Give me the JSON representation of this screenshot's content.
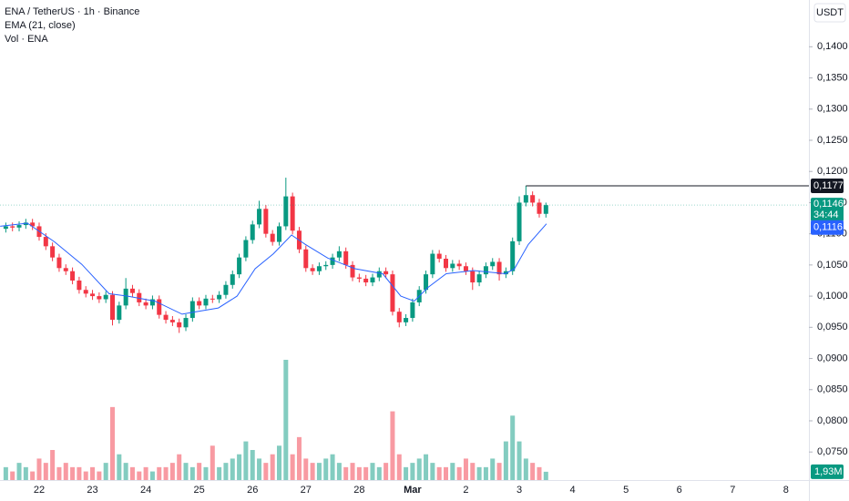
{
  "chart_data": {
    "type": "candlestick",
    "title": "ENA / TetherUS · 1h · Binance",
    "currency": "USDT",
    "up_color": "#089981",
    "down_color": "#f23645",
    "grid": false,
    "xlim": [
      21.266,
      36.43
    ],
    "ylim": [
      0.0705,
      0.1475
    ],
    "xticks": [
      22,
      23,
      24,
      25,
      26,
      27,
      28,
      {
        "value": 29,
        "label": "Mar"
      },
      {
        "value": 30,
        "label": "2"
      },
      {
        "value": 31,
        "label": "3"
      },
      {
        "value": 32,
        "label": "4"
      },
      {
        "value": 33,
        "label": "5"
      },
      {
        "value": 34,
        "label": "6"
      },
      {
        "value": 35,
        "label": "7"
      },
      {
        "value": 36,
        "label": "8"
      }
    ],
    "yticks": [
      {
        "value": 0.075,
        "label": "0,0750"
      },
      {
        "value": 0.08,
        "label": "0,0800"
      },
      {
        "value": 0.085,
        "label": "0,0850"
      },
      {
        "value": 0.09,
        "label": "0,0900"
      },
      {
        "value": 0.095,
        "label": "0,0950"
      },
      {
        "value": 0.1,
        "label": "0,1000"
      },
      {
        "value": 0.105,
        "label": "0,1050"
      },
      {
        "value": 0.11,
        "label": "0,1100"
      },
      {
        "value": 0.115,
        "label": "0,1150"
      },
      {
        "value": 0.12,
        "label": "0,1200"
      },
      {
        "value": 0.125,
        "label": "0,1250"
      },
      {
        "value": 0.13,
        "label": "0,1300"
      },
      {
        "value": 0.135,
        "label": "0,1350"
      },
      {
        "value": 0.14,
        "label": "0,1400"
      }
    ],
    "x": [
      21.375,
      21.5,
      21.625,
      21.75,
      21.875,
      22,
      22.125,
      22.25,
      22.375,
      22.5,
      22.625,
      22.75,
      22.875,
      23,
      23.125,
      23.25,
      23.375,
      23.5,
      23.625,
      23.75,
      23.875,
      24,
      24.125,
      24.25,
      24.375,
      24.5,
      24.625,
      24.75,
      24.875,
      25,
      25.125,
      25.25,
      25.375,
      25.5,
      25.625,
      25.75,
      25.875,
      26,
      26.125,
      26.25,
      26.375,
      26.5,
      26.625,
      26.75,
      26.875,
      27,
      27.125,
      27.25,
      27.375,
      27.5,
      27.625,
      27.75,
      27.875,
      28,
      28.125,
      28.25,
      28.375,
      28.5,
      28.625,
      28.75,
      28.875,
      29,
      29.125,
      29.25,
      29.375,
      29.5,
      29.625,
      29.75,
      29.875,
      30,
      30.125,
      30.25,
      30.375,
      30.5,
      30.625,
      30.75,
      30.875,
      31,
      31.125,
      31.25,
      31.375,
      31.5
    ],
    "open": [
      0.1108,
      0.1112,
      0.111,
      0.1114,
      0.1118,
      0.1112,
      0.1095,
      0.108,
      0.1062,
      0.1045,
      0.104,
      0.1025,
      0.101,
      0.1004,
      0.1,
      0.0995,
      0.1002,
      0.0962,
      0.0985,
      0.1012,
      0.1005,
      0.099,
      0.0985,
      0.0995,
      0.097,
      0.0962,
      0.0958,
      0.095,
      0.0965,
      0.0992,
      0.0985,
      0.0996,
      0.0995,
      0.1002,
      0.1018,
      0.1035,
      0.1062,
      0.109,
      0.1115,
      0.114,
      0.11,
      0.1087,
      0.1112,
      0.116,
      0.1105,
      0.1075,
      0.1045,
      0.104,
      0.1048,
      0.105,
      0.1062,
      0.1072,
      0.105,
      0.103,
      0.1028,
      0.1022,
      0.103,
      0.104,
      0.1035,
      0.0975,
      0.0958,
      0.0965,
      0.099,
      0.101,
      0.1035,
      0.1068,
      0.106,
      0.1045,
      0.1052,
      0.1048,
      0.104,
      0.1022,
      0.1035,
      0.1048,
      0.1055,
      0.1035,
      0.104,
      0.1088,
      0.115,
      0.1162,
      0.115,
      0.1132
    ],
    "high": [
      0.1118,
      0.1118,
      0.112,
      0.1124,
      0.1124,
      0.1118,
      0.1101,
      0.1086,
      0.1068,
      0.1051,
      0.1046,
      0.1031,
      0.1016,
      0.101,
      0.1006,
      0.1008,
      0.1008,
      0.0991,
      0.1029,
      0.1018,
      0.1011,
      0.0996,
      0.1001,
      0.1001,
      0.0976,
      0.0968,
      0.0964,
      0.0971,
      0.0998,
      0.0998,
      0.1002,
      0.1002,
      0.1008,
      0.1024,
      0.1041,
      0.1068,
      0.1096,
      0.1121,
      0.1153,
      0.1146,
      0.1106,
      0.1118,
      0.119,
      0.1166,
      0.1111,
      0.1081,
      0.1051,
      0.1054,
      0.1056,
      0.1068,
      0.108,
      0.1078,
      0.1056,
      0.1036,
      0.1034,
      0.1036,
      0.1046,
      0.1046,
      0.1041,
      0.0981,
      0.0971,
      0.0996,
      0.1016,
      0.1041,
      0.1074,
      0.1074,
      0.1066,
      0.1058,
      0.1058,
      0.1054,
      0.1046,
      0.1041,
      0.1054,
      0.1061,
      0.1061,
      0.1046,
      0.1094,
      0.116,
      0.1177,
      0.1168,
      0.1156,
      0.115
    ],
    "low": [
      0.1102,
      0.1104,
      0.1104,
      0.1108,
      0.1106,
      0.1089,
      0.1074,
      0.1056,
      0.1039,
      0.1034,
      0.1019,
      0.1004,
      0.0998,
      0.0994,
      0.0989,
      0.0989,
      0.0953,
      0.0956,
      0.0979,
      0.0999,
      0.0984,
      0.0979,
      0.0979,
      0.0964,
      0.0956,
      0.0952,
      0.0941,
      0.0944,
      0.0959,
      0.0979,
      0.0979,
      0.0989,
      0.0989,
      0.0996,
      0.1012,
      0.1029,
      0.1056,
      0.1084,
      0.1109,
      0.1094,
      0.1081,
      0.1081,
      0.1106,
      0.1099,
      0.1069,
      0.1039,
      0.1034,
      0.1034,
      0.1042,
      0.1044,
      0.1056,
      0.1044,
      0.1024,
      0.1022,
      0.1016,
      0.1016,
      0.1024,
      0.1029,
      0.0969,
      0.095,
      0.0952,
      0.0959,
      0.0984,
      0.1004,
      0.1029,
      0.1054,
      0.1039,
      0.1039,
      0.1042,
      0.1034,
      0.101,
      0.1016,
      0.1029,
      0.1042,
      0.1025,
      0.1029,
      0.1034,
      0.1082,
      0.1144,
      0.1144,
      0.1126,
      0.1126
    ],
    "close": [
      0.1112,
      0.111,
      0.1114,
      0.1118,
      0.1112,
      0.1095,
      0.108,
      0.1062,
      0.1045,
      0.104,
      0.1025,
      0.101,
      0.1004,
      0.1,
      0.0995,
      0.1002,
      0.0962,
      0.0985,
      0.1012,
      0.1005,
      0.099,
      0.0985,
      0.0995,
      0.097,
      0.0962,
      0.0958,
      0.095,
      0.0965,
      0.0992,
      0.0985,
      0.0996,
      0.0995,
      0.1002,
      0.1018,
      0.1035,
      0.1062,
      0.109,
      0.1115,
      0.114,
      0.11,
      0.1087,
      0.1112,
      0.116,
      0.1105,
      0.1075,
      0.1045,
      0.104,
      0.1048,
      0.105,
      0.1062,
      0.1072,
      0.105,
      0.103,
      0.1028,
      0.1022,
      0.103,
      0.104,
      0.1035,
      0.0975,
      0.0958,
      0.0965,
      0.099,
      0.101,
      0.1035,
      0.1068,
      0.106,
      0.1045,
      0.1052,
      0.1048,
      0.104,
      0.1022,
      0.1035,
      0.1048,
      0.1055,
      0.1035,
      0.104,
      0.1088,
      0.115,
      0.1162,
      0.115,
      0.1132,
      0.1146
    ],
    "close_label": "0,1146",
    "countdown": "34:44",
    "high_label": "0,1177",
    "volume_name": "Vol · ENA",
    "volume": [
      3,
      2,
      4,
      3,
      2,
      5,
      4,
      7,
      3,
      4,
      3,
      3,
      2,
      3,
      2,
      4,
      17,
      6,
      4,
      3,
      2,
      3,
      2,
      3,
      3,
      4,
      6,
      4,
      3,
      4,
      3,
      8,
      3,
      4,
      5,
      6,
      9,
      7,
      5,
      4,
      6,
      8,
      28,
      6,
      10,
      5,
      4,
      4,
      5,
      6,
      4,
      3,
      4,
      3,
      3,
      4,
      3,
      4,
      16,
      6,
      3,
      4,
      5,
      6,
      4,
      3,
      3,
      4,
      3,
      5,
      4,
      3,
      3,
      5,
      4,
      9,
      15,
      9,
      5,
      4,
      3,
      1.93
    ],
    "volume_label": "1,93M",
    "ema": {
      "name": "EMA (21, close)",
      "color": "#2962ff",
      "x": [
        21.27,
        21.78,
        22.29,
        22.8,
        23.31,
        23.66,
        24.17,
        24.68,
        24.94,
        25.36,
        25.71,
        26.05,
        26.39,
        26.73,
        26.99,
        27.41,
        27.92,
        28.44,
        28.78,
        29.03,
        29.29,
        29.63,
        30.14,
        30.74,
        30.91,
        31.17,
        31.51
      ],
      "values": [
        0.1112,
        0.1117,
        0.1087,
        0.1051,
        0.1004,
        0.1,
        0.0992,
        0.0971,
        0.0975,
        0.0981,
        0.1,
        0.1044,
        0.1068,
        0.1098,
        0.1083,
        0.1061,
        0.1044,
        0.1036,
        0.1,
        0.0992,
        0.1014,
        0.1036,
        0.1041,
        0.1036,
        0.1044,
        0.1083,
        0.1116
      ],
      "label": "0,1116"
    }
  }
}
